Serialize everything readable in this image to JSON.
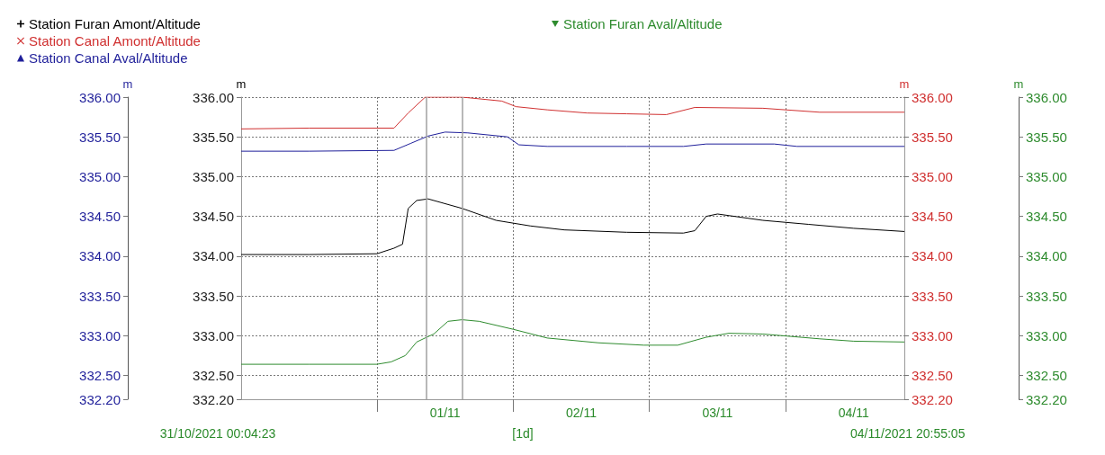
{
  "chart_data": {
    "type": "line",
    "xlim": [
      "2021-10-31T00:04",
      "2021-11-04T20:55"
    ],
    "xticks": [
      {
        "value": "2021-11-01T00:00",
        "label": null
      },
      {
        "value": "2021-11-01T12:00",
        "label": "01/11"
      },
      {
        "value": "2021-11-02T00:00",
        "label": null
      },
      {
        "value": "2021-11-02T12:00",
        "label": "02/11"
      },
      {
        "value": "2021-11-03T00:00",
        "label": null
      },
      {
        "value": "2021-11-03T12:00",
        "label": "03/11"
      },
      {
        "value": "2021-11-04T00:00",
        "label": null
      },
      {
        "value": "2021-11-04T12:00",
        "label": "04/11"
      }
    ],
    "ylabel": "m",
    "ylim": [
      332.2,
      336.0
    ],
    "yticks": [
      {
        "value": 332.2,
        "label": "332.20"
      },
      {
        "value": 332.5,
        "label": "332.50"
      },
      {
        "value": 333,
        "label": "333.00"
      },
      {
        "value": 333.5,
        "label": "333.50"
      },
      {
        "value": 334,
        "label": "334.00"
      },
      {
        "value": 334.5,
        "label": "334.50"
      },
      {
        "value": 335,
        "label": "335.00"
      },
      {
        "value": 335.5,
        "label": "335.50"
      },
      {
        "value": 336,
        "label": "336.00"
      }
    ],
    "y2label": "m",
    "y2lim": [
      332.2,
      336.0
    ],
    "y2ticks": [
      {
        "value": 332.2,
        "label": "332.20"
      },
      {
        "value": 332.5,
        "label": "332.50"
      },
      {
        "value": 333,
        "label": "333.00"
      },
      {
        "value": 333.5,
        "label": "333.50"
      },
      {
        "value": 334,
        "label": "334.00"
      },
      {
        "value": 334.5,
        "label": "334.50"
      },
      {
        "value": 335,
        "label": "335.00"
      },
      {
        "value": 335.5,
        "label": "335.50"
      },
      {
        "value": 336,
        "label": "336.00"
      }
    ],
    "y3label": "m",
    "y3lim": [
      332.2,
      336.0
    ],
    "y3ticks": [
      {
        "value": 332.2,
        "label": "332.20"
      },
      {
        "value": 332.5,
        "label": "332.50"
      },
      {
        "value": 333,
        "label": "333.00"
      },
      {
        "value": 333.5,
        "label": "333.50"
      },
      {
        "value": 334,
        "label": "334.00"
      },
      {
        "value": 334.5,
        "label": "334.50"
      },
      {
        "value": 335,
        "label": "335.00"
      },
      {
        "value": 335.5,
        "label": "335.50"
      },
      {
        "value": 336,
        "label": "336.00"
      }
    ],
    "series": [
      {
        "name": "Station Furan Amont/Altitude",
        "color": "#000000",
        "axis": "y",
        "x": [
          "2021-10-31T00:04",
          "2021-10-31T12:00",
          "2021-11-01T00:00",
          "2021-11-01T03:00",
          "2021-11-01T04:30",
          "2021-11-01T05:30",
          "2021-11-01T07:00",
          "2021-11-01T09:00",
          "2021-11-01T15:00",
          "2021-11-01T21:00",
          "2021-11-02T03:00",
          "2021-11-02T09:00",
          "2021-11-02T20:00",
          "2021-11-03T06:00",
          "2021-11-03T08:00",
          "2021-11-03T10:00",
          "2021-11-03T12:00",
          "2021-11-03T20:00",
          "2021-11-04T04:00",
          "2021-11-04T12:00",
          "2021-11-04T20:55"
        ],
        "values": [
          334.02,
          334.02,
          334.03,
          334.1,
          334.15,
          334.6,
          334.7,
          334.72,
          334.6,
          334.45,
          334.38,
          334.33,
          334.3,
          334.29,
          334.32,
          334.5,
          334.53,
          334.45,
          334.4,
          334.35,
          334.31
        ]
      },
      {
        "name": "Station Canal Amont/Altitude",
        "color": "#d03030",
        "axis": "y2",
        "x": [
          "2021-10-31T00:04",
          "2021-10-31T12:00",
          "2021-11-01T03:00",
          "2021-11-01T05:30",
          "2021-11-01T08:30",
          "2021-11-01T15:00",
          "2021-11-01T22:00",
          "2021-11-02T00:30",
          "2021-11-02T06:00",
          "2021-11-02T13:00",
          "2021-11-02T20:00",
          "2021-11-03T03:00",
          "2021-11-03T08:00",
          "2021-11-03T20:00",
          "2021-11-04T06:00",
          "2021-11-04T20:55"
        ],
        "values": [
          335.6,
          335.61,
          335.61,
          335.8,
          336.0,
          336.0,
          335.95,
          335.88,
          335.84,
          335.8,
          335.79,
          335.78,
          335.87,
          335.86,
          335.81,
          335.81
        ]
      },
      {
        "name": "Station Canal Aval/Altitude",
        "color": "#1f1f9a",
        "axis": "y3",
        "x": [
          "2021-10-31T00:04",
          "2021-10-31T12:00",
          "2021-11-01T03:00",
          "2021-11-01T06:00",
          "2021-11-01T09:00",
          "2021-11-01T12:00",
          "2021-11-01T16:00",
          "2021-11-01T23:00",
          "2021-11-02T01:00",
          "2021-11-02T06:00",
          "2021-11-02T20:00",
          "2021-11-03T06:00",
          "2021-11-03T10:00",
          "2021-11-03T22:00",
          "2021-11-04T02:00",
          "2021-11-04T20:55"
        ],
        "values": [
          335.32,
          335.32,
          335.33,
          335.42,
          335.51,
          335.56,
          335.55,
          335.5,
          335.4,
          335.38,
          335.38,
          335.38,
          335.41,
          335.41,
          335.38,
          335.38
        ]
      },
      {
        "name": "Station Furan Aval/Altitude",
        "color": "#2e8b2e",
        "axis": "y3",
        "x": [
          "2021-10-31T00:04",
          "2021-10-31T12:00",
          "2021-11-01T00:00",
          "2021-11-01T02:30",
          "2021-11-01T05:00",
          "2021-11-01T07:00",
          "2021-11-01T08:45",
          "2021-11-01T10:00",
          "2021-11-01T12:30",
          "2021-11-01T15:00",
          "2021-11-01T18:00",
          "2021-11-02T00:00",
          "2021-11-02T06:00",
          "2021-11-02T15:00",
          "2021-11-02T23:00",
          "2021-11-03T05:00",
          "2021-11-03T10:00",
          "2021-11-03T14:00",
          "2021-11-03T20:00",
          "2021-11-04T06:00",
          "2021-11-04T12:00",
          "2021-11-04T20:55"
        ],
        "values": [
          332.64,
          332.64,
          332.64,
          332.67,
          332.75,
          332.92,
          332.98,
          333.02,
          333.18,
          333.2,
          333.18,
          333.08,
          332.97,
          332.91,
          332.88,
          332.88,
          332.98,
          333.03,
          333.02,
          332.96,
          332.93,
          332.92
        ]
      }
    ],
    "ref_lines": [
      {
        "axis": "x",
        "value": "2021-11-01T08:45",
        "color": "#a0a0a0",
        "line_style": "solid"
      },
      {
        "axis": "x",
        "value": "2021-11-01T15:00",
        "color": "#a0a0a0",
        "line_style": "solid"
      }
    ],
    "annotations": [
      "31/10/2021 00:04:23",
      "[1d]",
      "04/11/2021 20:55:05"
    ],
    "grid": true,
    "legend": "top left"
  }
}
